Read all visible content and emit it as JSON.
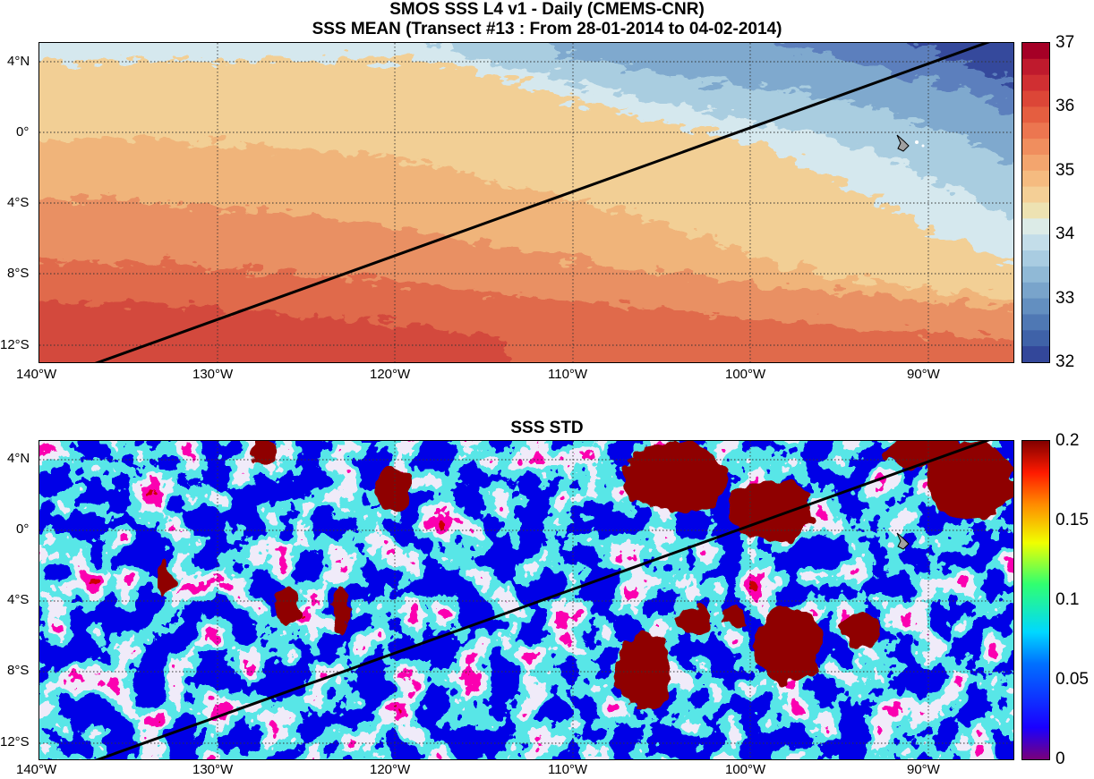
{
  "figure": {
    "title_line1": "SMOS SSS L4 v1 - Daily (CMEMS-CNR)",
    "title_line2": "SSS MEAN (Transect #13 : From 28-01-2014 to 04-02-2014)"
  },
  "axes": {
    "lon_labels": [
      "140°W",
      "130°W",
      "120°W",
      "110°W",
      "100°W",
      "90°W"
    ],
    "lat_labels": [
      "4°N",
      "0°",
      "4°S",
      "8°S",
      "12°S"
    ]
  },
  "transect": {
    "start": {
      "lon": -137.0,
      "lat": -13.0
    },
    "end": {
      "lon": -86.5,
      "lat": 5.0
    }
  },
  "maps": [
    {
      "title": "SSS MEAN",
      "colorbar": {
        "min": 32,
        "max": 37,
        "ticks": [
          "37",
          "36",
          "35",
          "34",
          "33",
          "32"
        ],
        "colormap": "diverging-red-blue"
      }
    },
    {
      "title": "SSS STD",
      "colorbar": {
        "min": 0,
        "max": 0.2,
        "ticks": [
          "0.2",
          "0.15",
          "0.1",
          "0.05",
          "0"
        ],
        "colormap": "jet"
      }
    }
  ],
  "icons": {
    "land_marker": "galapagos-island-icon"
  }
}
